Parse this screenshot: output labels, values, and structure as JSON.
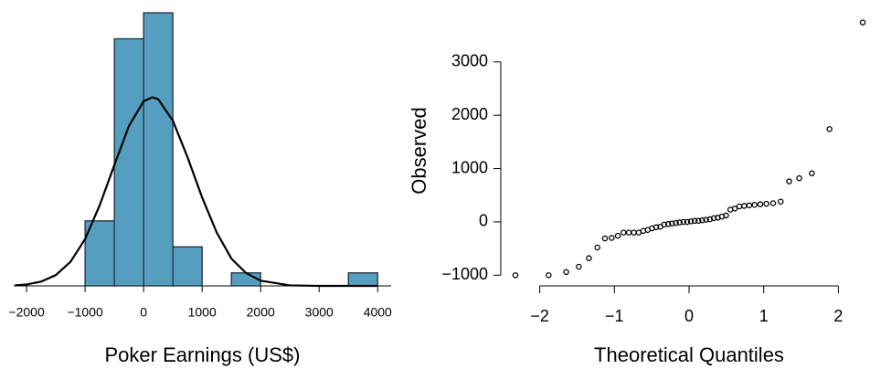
{
  "chart_data": [
    {
      "type": "histogram",
      "x_label": "Poker Earnings (US$)",
      "bins": [
        -1000,
        -500,
        0,
        500,
        1000,
        1500,
        2000,
        2500,
        3000,
        3500,
        4000
      ],
      "values": [
        5,
        19,
        21,
        3,
        0,
        1,
        0,
        0,
        0,
        1
      ],
      "color": "#569ec0",
      "curve": {
        "x": [
          -2200,
          -2000,
          -1750,
          -1500,
          -1250,
          -1000,
          -750,
          -500,
          -250,
          0,
          150,
          250,
          500,
          750,
          1000,
          1250,
          1500,
          1750,
          2000,
          2500,
          3000,
          4000
        ],
        "y": [
          0.04,
          0.11,
          0.33,
          0.83,
          1.85,
          3.6,
          6.2,
          9.3,
          12.3,
          14.2,
          14.5,
          14.35,
          12.7,
          9.9,
          6.8,
          4.1,
          2.1,
          0.99,
          0.4,
          0.04,
          0,
          0
        ]
      },
      "xlim": [
        -2220,
        4230
      ],
      "ylim": [
        0,
        21
      ],
      "xticks": [
        {
          "value": -2000,
          "label": "−2000"
        },
        {
          "value": -1000,
          "label": "−1000"
        },
        0,
        1000,
        2000,
        3000,
        4000
      ]
    },
    {
      "type": "scatter",
      "x_label": "Theoretical Quantiles",
      "y_label": "Observed",
      "x": [
        -2.326,
        -1.881,
        -1.645,
        -1.476,
        -1.341,
        -1.227,
        -1.126,
        -1.036,
        -0.954,
        -0.878,
        -0.806,
        -0.739,
        -0.674,
        -0.613,
        -0.553,
        -0.496,
        -0.44,
        -0.385,
        -0.332,
        -0.279,
        -0.228,
        -0.176,
        -0.126,
        -0.075,
        -0.025,
        0.025,
        0.075,
        0.126,
        0.176,
        0.228,
        0.279,
        0.332,
        0.385,
        0.44,
        0.496,
        0.553,
        0.613,
        0.674,
        0.739,
        0.806,
        0.878,
        0.954,
        1.036,
        1.126,
        1.227,
        1.341,
        1.476,
        1.645,
        1.881,
        2.326
      ],
      "y": [
        -1000,
        -1000,
        -940,
        -840,
        -680,
        -480,
        -310,
        -300,
        -260,
        -200,
        -200,
        -200,
        -200,
        -170,
        -150,
        -120,
        -100,
        -90,
        -50,
        -40,
        -30,
        -20,
        -10,
        0,
        0,
        10,
        20,
        20,
        30,
        40,
        50,
        70,
        80,
        100,
        120,
        230,
        250,
        290,
        300,
        310,
        320,
        330,
        340,
        350,
        380,
        760,
        820,
        910,
        1740,
        3740
      ],
      "color": "#000000",
      "xlim": [
        -2.35,
        2.35
      ],
      "ylim": [
        -1200,
        3750
      ],
      "xticks": [
        {
          "value": -2,
          "label": "−2"
        },
        {
          "value": -1,
          "label": "−1"
        },
        0,
        1,
        2
      ],
      "yticks": [
        {
          "value": -1000,
          "label": "−1000"
        },
        0,
        1000,
        2000,
        3000
      ]
    }
  ]
}
